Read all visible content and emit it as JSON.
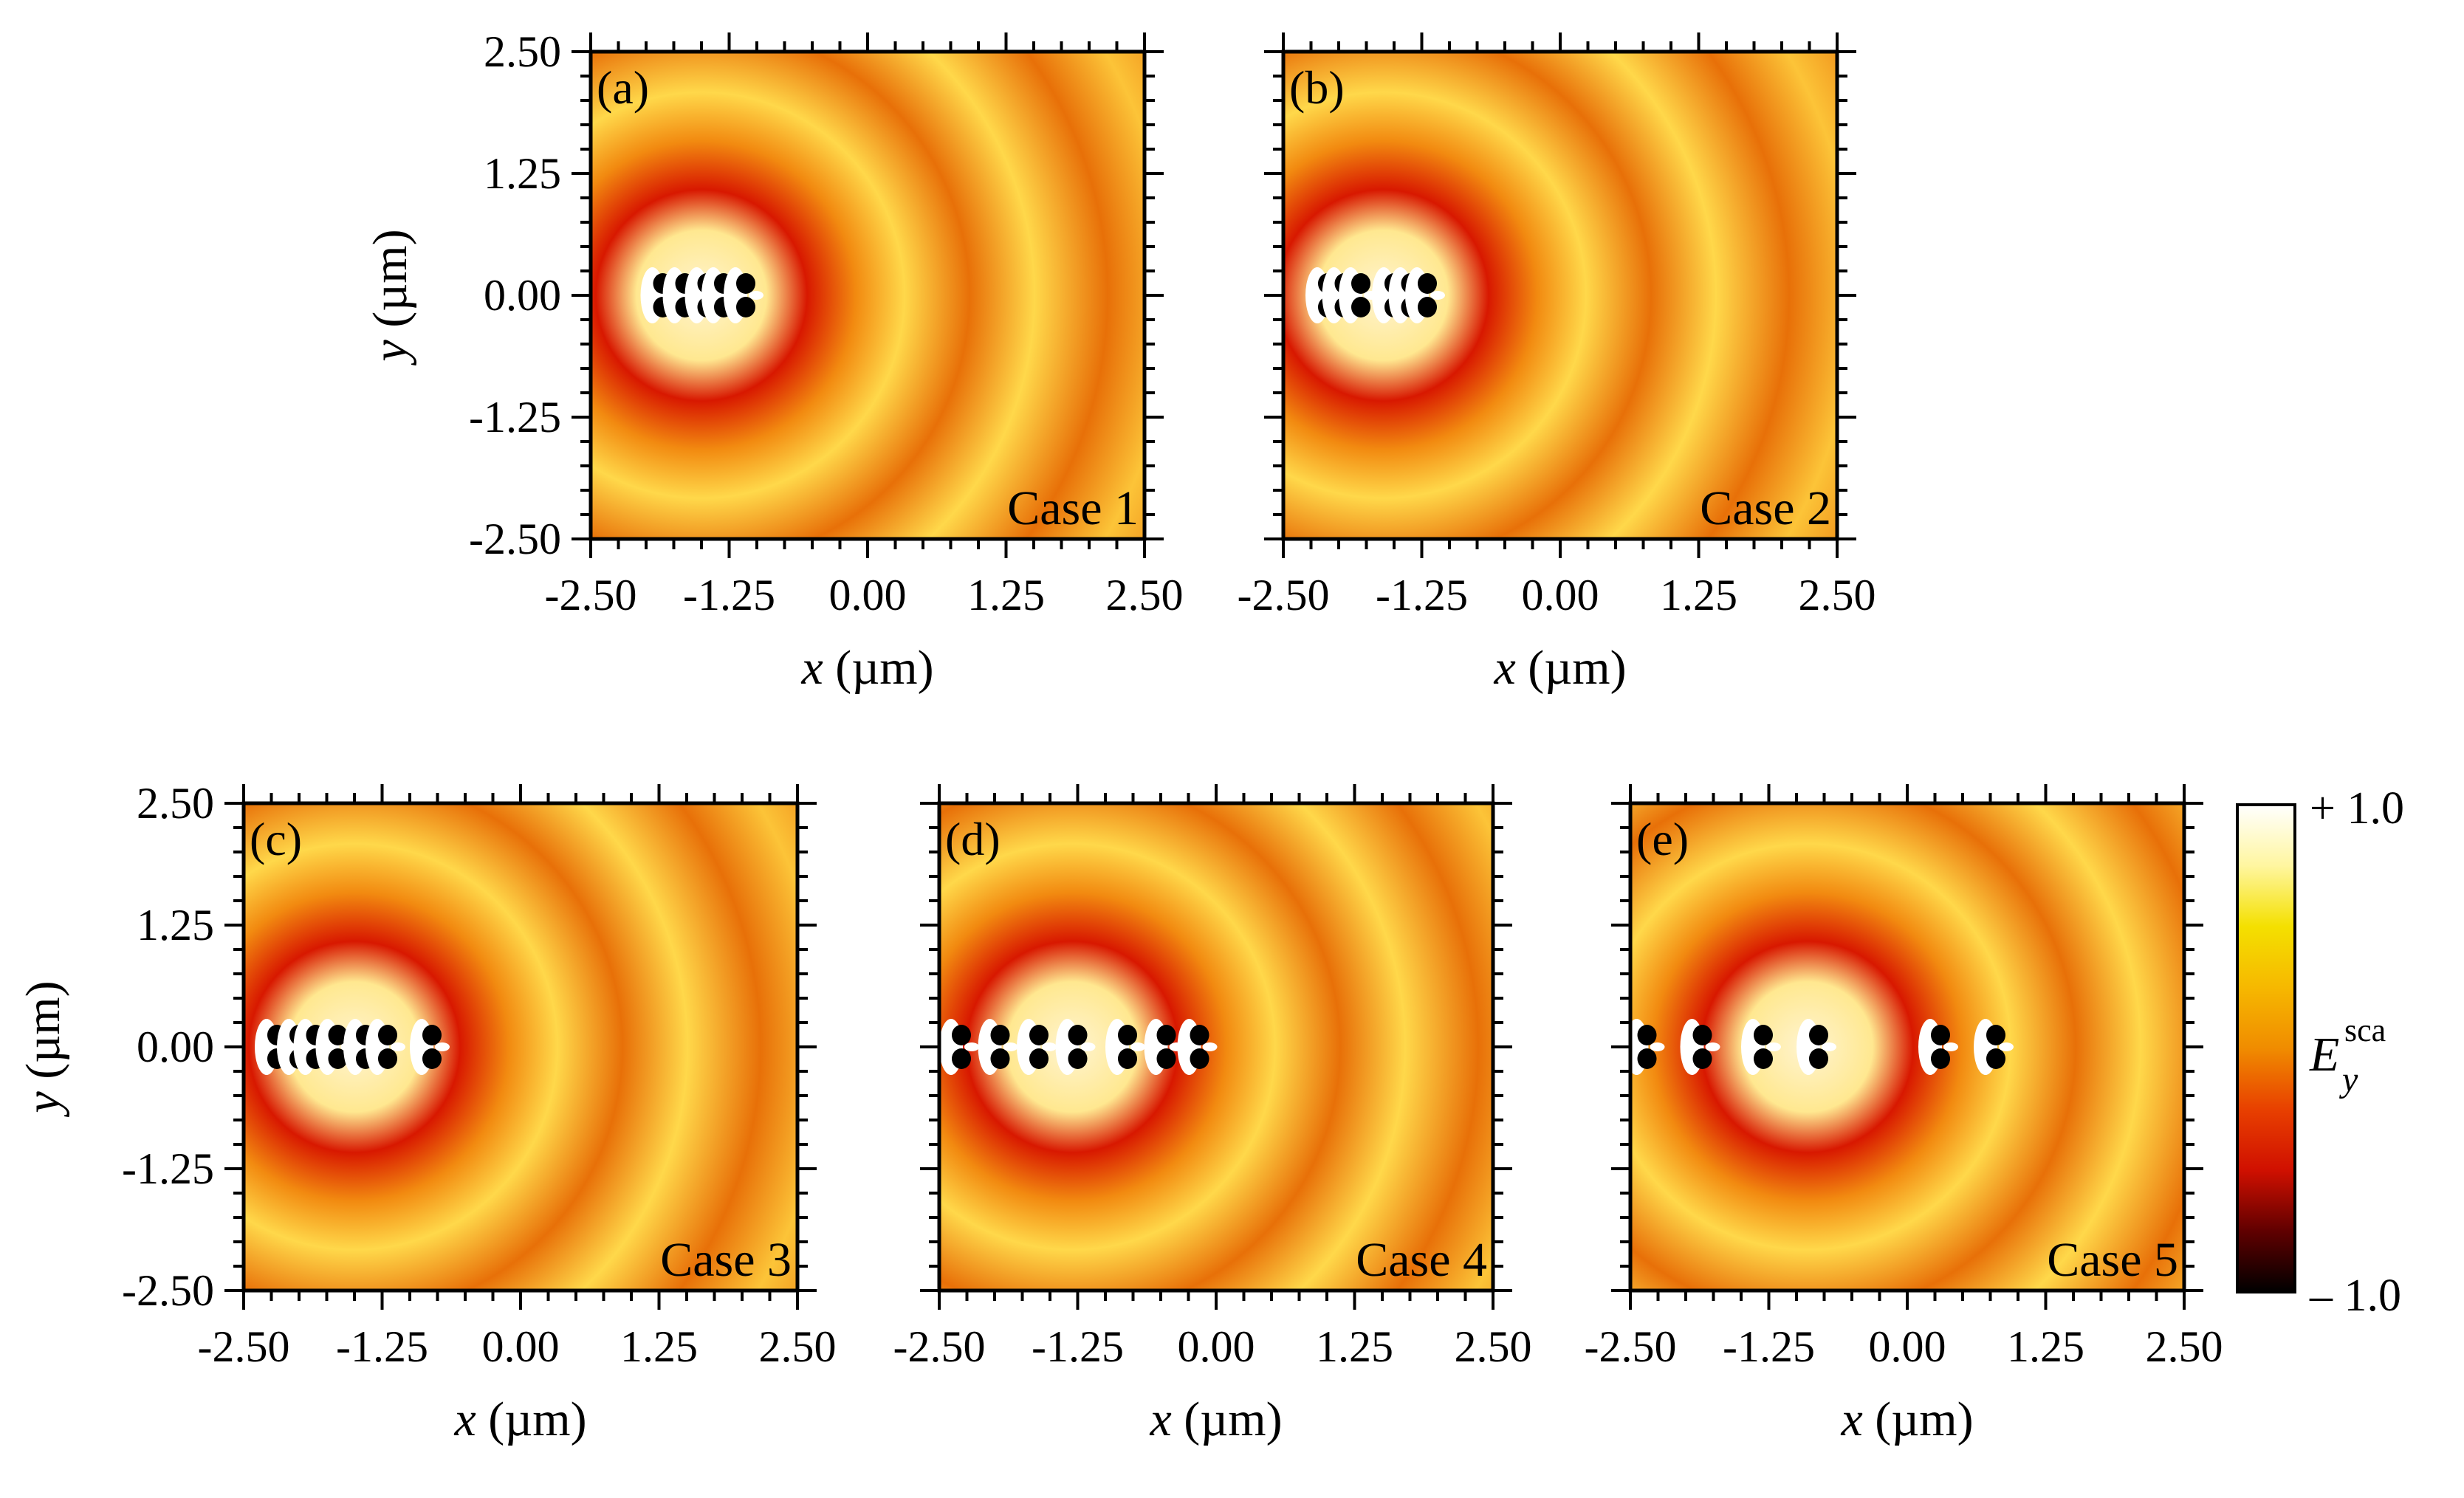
{
  "chart_data": [
    {
      "type": "heatmap",
      "panel": "(a)",
      "case_label": "Case 1",
      "xlabel_var": "x",
      "xlabel_unit": " (µm)",
      "ylabel_var": "y",
      "ylabel_unit": " (µm)",
      "xlim": [
        -2.5,
        2.5
      ],
      "ylim": [
        -2.5,
        2.5
      ],
      "xticks": [
        "-2.50",
        "-1.25",
        "0.00",
        "1.25",
        "2.50"
      ],
      "yticks": [
        "2.50",
        "1.25",
        "0.00",
        "-1.25",
        "-2.50"
      ],
      "scatterer_positions_um": [
        -1.85,
        -1.65,
        -1.45,
        -1.3,
        -1.1
      ],
      "wavefront_center_um": [
        -1.5,
        0.0
      ]
    },
    {
      "type": "heatmap",
      "panel": "(b)",
      "case_label": "Case 2",
      "xlabel_var": "x",
      "xlabel_unit": " (µm)",
      "xlim": [
        -2.5,
        2.5
      ],
      "ylim": [
        -2.5,
        2.5
      ],
      "xticks": [
        "-2.50",
        "-1.25",
        "0.00",
        "1.25",
        "2.50"
      ],
      "scatterer_positions_um": [
        -2.1,
        -1.95,
        -1.8,
        -1.5,
        -1.35,
        -1.2
      ],
      "wavefront_center_um": [
        -1.6,
        0.0
      ]
    },
    {
      "type": "heatmap",
      "panel": "(c)",
      "case_label": "Case 3",
      "xlabel_var": "x",
      "xlabel_unit": " (µm)",
      "ylabel_var": "y",
      "ylabel_unit": " (µm)",
      "xlim": [
        -2.5,
        2.5
      ],
      "ylim": [
        -2.5,
        2.5
      ],
      "xticks": [
        "-2.50",
        "-1.25",
        "0.00",
        "1.25",
        "2.50"
      ],
      "yticks": [
        "2.50",
        "1.25",
        "0.00",
        "-1.25",
        "-2.50"
      ],
      "scatterer_positions_um": [
        -2.2,
        -2.0,
        -1.85,
        -1.65,
        -1.4,
        -1.2,
        -0.8
      ],
      "wavefront_center_um": [
        -1.5,
        0.0
      ]
    },
    {
      "type": "heatmap",
      "panel": "(d)",
      "case_label": "Case 4",
      "xlabel_var": "x",
      "xlabel_unit": " (µm)",
      "xlim": [
        -2.5,
        2.5
      ],
      "ylim": [
        -2.5,
        2.5
      ],
      "xticks": [
        "-2.50",
        "-1.25",
        "0.00",
        "1.25",
        "2.50"
      ],
      "scatterer_positions_um": [
        -2.3,
        -1.95,
        -1.6,
        -1.25,
        -0.8,
        -0.45,
        -0.15
      ],
      "wavefront_center_um": [
        -1.3,
        0.0
      ]
    },
    {
      "type": "heatmap",
      "panel": "(e)",
      "case_label": "Case 5",
      "xlabel_var": "x",
      "xlabel_unit": " (µm)",
      "xlim": [
        -2.5,
        2.5
      ],
      "ylim": [
        -2.5,
        2.5
      ],
      "xticks": [
        "-2.50",
        "-1.25",
        "0.00",
        "1.25",
        "2.50"
      ],
      "scatterer_positions_um": [
        -2.35,
        -1.85,
        -1.3,
        -0.8,
        0.3,
        0.8
      ],
      "wavefront_center_um": [
        -0.9,
        0.0
      ]
    }
  ],
  "colorbar": {
    "max_label": "+ 1.0",
    "min_label": "– 1.0",
    "quantity_symbol": "E",
    "quantity_superscript": "sca",
    "quantity_subscript": "y",
    "range": [
      -1.0,
      1.0
    ],
    "stops": [
      "#ffffff",
      "#fff6a0",
      "#f4e000",
      "#f6b800",
      "#f08c00",
      "#e84000",
      "#d01000",
      "#600000",
      "#000000"
    ]
  },
  "colors": {
    "background_field": "#f5a623",
    "bright_band": "#ffd84a",
    "dark_band": "#e87008",
    "frame": "#000000"
  }
}
